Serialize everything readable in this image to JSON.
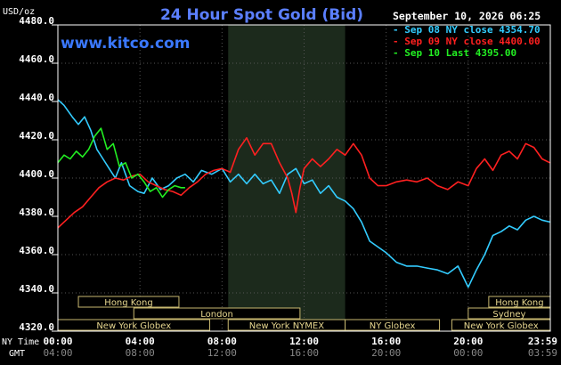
{
  "chart_data": {
    "type": "line",
    "title": "24 Hour Spot Gold (Bid)",
    "site": "www.kitco.com",
    "timestamp": "September 10, 2026 06:25",
    "ylabel": "USD/oz",
    "ylim": [
      4320,
      4480
    ],
    "yticks": [
      "4480.0",
      "4460.0",
      "4440.0",
      "4420.0",
      "4400.0",
      "4380.0",
      "4360.0",
      "4340.0",
      "4320.0"
    ],
    "xlim": [
      0,
      24
    ],
    "x_row1_label": "NY Time",
    "x_row2_label": "GMT",
    "x_ticks_ny": [
      "00:00",
      "04:00",
      "08:00",
      "12:00",
      "16:00",
      "20:00",
      "23:59"
    ],
    "x_ticks_gmt": [
      "04:00",
      "08:00",
      "12:00",
      "16:00",
      "20:00",
      "00:00",
      "03:59"
    ],
    "x_tick_hours": [
      0,
      4,
      8,
      12,
      16,
      20,
      23.98
    ],
    "legend": [
      {
        "label": "Sep 08 NY close 4354.70",
        "color": "#33ccff"
      },
      {
        "label": "Sep 09 NY close 4400.00",
        "color": "#ff2020"
      },
      {
        "label": "Sep 10 Last 4395.00",
        "color": "#22ee22"
      }
    ],
    "shaded_hours": [
      8.3,
      14
    ],
    "sessions": [
      {
        "label": "Hong Kong",
        "row": 0,
        "start": 1.0,
        "end": 5.9
      },
      {
        "label": "London",
        "row": 1,
        "start": 3.7,
        "end": 11.8
      },
      {
        "label": "New York Globex",
        "row": 2,
        "start": 0,
        "end": 7.4
      },
      {
        "label": "New York NYMEX",
        "row": 2,
        "start": 8.3,
        "end": 14.0
      },
      {
        "label": "NY Globex",
        "row": 2,
        "start": 14.0,
        "end": 18.6
      },
      {
        "label": "Hong Kong",
        "row": 0,
        "start": 21.0,
        "end": 24
      },
      {
        "label": "Sydney",
        "row": 1,
        "start": 20.0,
        "end": 24
      },
      {
        "label": "New York Globex",
        "row": 2,
        "start": 19.2,
        "end": 24
      }
    ],
    "series": [
      {
        "name": "Sep 08",
        "color": "#33ccff",
        "x": [
          0,
          0.3,
          0.7,
          1.0,
          1.3,
          1.6,
          1.9,
          2.2,
          2.5,
          2.8,
          3.1,
          3.5,
          3.9,
          4.2,
          4.6,
          5.0,
          5.4,
          5.8,
          6.2,
          6.6,
          7.0,
          7.5,
          8.0,
          8.4,
          8.8,
          9.2,
          9.6,
          10.0,
          10.4,
          10.8,
          11.2,
          11.6,
          12.0,
          12.4,
          12.8,
          13.2,
          13.6,
          14.0,
          14.4,
          14.8,
          15.2,
          15.6,
          16.0,
          16.5,
          17.0,
          17.5,
          18.0,
          18.5,
          19.0,
          19.5,
          20.0,
          20.4,
          20.8,
          21.2,
          21.6,
          22.0,
          22.4,
          22.8,
          23.2,
          23.6,
          23.98
        ],
        "values": [
          4441,
          4438,
          4432,
          4428,
          4432,
          4425,
          4415,
          4410,
          4405,
          4400,
          4408,
          4396,
          4393,
          4392,
          4400,
          4394,
          4396,
          4400,
          4402,
          4398,
          4404,
          4402,
          4405,
          4398,
          4402,
          4397,
          4402,
          4397,
          4399,
          4392,
          4402,
          4405,
          4397,
          4399,
          4392,
          4396,
          4390,
          4388,
          4384,
          4377,
          4367,
          4364,
          4361,
          4356,
          4354,
          4354,
          4353,
          4352,
          4350,
          4354,
          4343,
          4352,
          4360,
          4370,
          4372,
          4375,
          4373,
          4378,
          4380,
          4378,
          4377
        ]
      },
      {
        "name": "Sep 09",
        "color": "#ff2020",
        "x": [
          0,
          0.4,
          0.8,
          1.2,
          1.6,
          2.0,
          2.4,
          2.8,
          3.2,
          3.6,
          4.0,
          4.4,
          4.8,
          5.2,
          5.6,
          6.0,
          6.4,
          6.8,
          7.2,
          7.6,
          8.0,
          8.4,
          8.8,
          9.2,
          9.6,
          10.0,
          10.4,
          10.8,
          11.2,
          11.4,
          11.6,
          11.8,
          12.0,
          12.4,
          12.8,
          13.2,
          13.6,
          14.0,
          14.4,
          14.8,
          15.2,
          15.6,
          16.0,
          16.5,
          17.0,
          17.5,
          18.0,
          18.5,
          19.0,
          19.5,
          20.0,
          20.4,
          20.8,
          21.2,
          21.6,
          22.0,
          22.4,
          22.8,
          23.2,
          23.6,
          23.98
        ],
        "values": [
          4374,
          4378,
          4382,
          4385,
          4390,
          4395,
          4398,
          4400,
          4399,
          4401,
          4402,
          4398,
          4396,
          4394,
          4393,
          4391,
          4395,
          4398,
          4402,
          4404,
          4405,
          4403,
          4415,
          4421,
          4412,
          4418,
          4418,
          4408,
          4400,
          4392,
          4382,
          4395,
          4405,
          4410,
          4406,
          4410,
          4415,
          4412,
          4418,
          4412,
          4400,
          4396,
          4396,
          4398,
          4399,
          4398,
          4400,
          4396,
          4394,
          4398,
          4396,
          4405,
          4410,
          4404,
          4412,
          4414,
          4410,
          4418,
          4416,
          4410,
          4408
        ]
      },
      {
        "name": "Sep 10",
        "color": "#22ee22",
        "x": [
          0,
          0.3,
          0.6,
          0.9,
          1.2,
          1.5,
          1.8,
          2.1,
          2.4,
          2.7,
          3.0,
          3.3,
          3.6,
          3.9,
          4.2,
          4.5,
          4.8,
          5.1,
          5.4,
          5.7,
          6.0,
          6.2
        ],
        "values": [
          4408,
          4412,
          4410,
          4414,
          4411,
          4415,
          4422,
          4426,
          4415,
          4418,
          4406,
          4408,
          4400,
          4402,
          4398,
          4393,
          4395,
          4390,
          4394,
          4396,
          4395,
          4395
        ]
      }
    ]
  }
}
